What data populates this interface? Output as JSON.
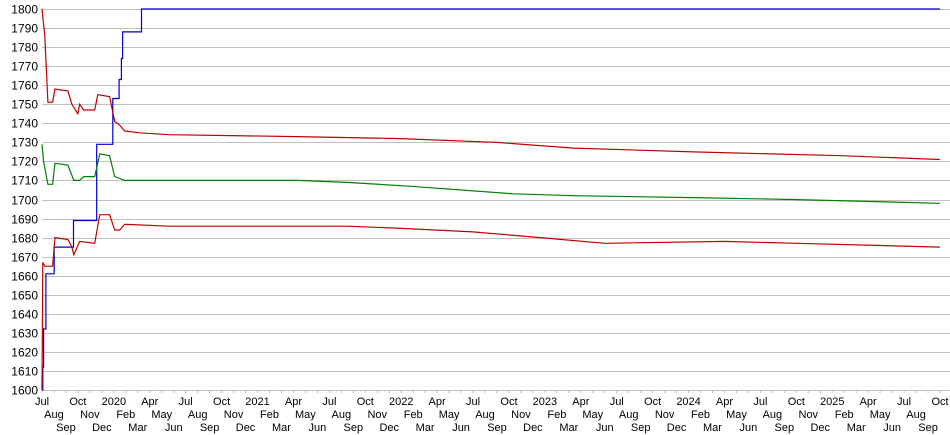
{
  "chart_data": {
    "type": "line",
    "title": "",
    "xlabel": "",
    "ylabel": "",
    "ylim": [
      1600,
      1800
    ],
    "yticks": [
      1600,
      1610,
      1620,
      1630,
      1640,
      1650,
      1660,
      1670,
      1680,
      1690,
      1700,
      1710,
      1720,
      1730,
      1740,
      1750,
      1760,
      1770,
      1780,
      1790,
      1800
    ],
    "xlim": [
      "2019-07-01",
      "2025-10-01"
    ],
    "xtick_labels": [
      "Jul",
      "Aug",
      "Sep",
      "Oct",
      "Nov",
      "Dec",
      "2020",
      "Feb",
      "Mar",
      "Apr",
      "May",
      "Jun",
      "Jul",
      "Aug",
      "Sep",
      "Oct",
      "Nov",
      "Dec",
      "2021",
      "Feb",
      "Mar",
      "Apr",
      "May",
      "Jun",
      "Jul",
      "Aug",
      "Sep",
      "Oct",
      "Nov",
      "Dec",
      "2022",
      "Feb",
      "Mar",
      "Apr",
      "May",
      "Jun",
      "Jul",
      "Aug",
      "Sep",
      "Oct",
      "Nov",
      "Dec",
      "2023",
      "Feb",
      "Mar",
      "Apr",
      "May",
      "Jun",
      "Jul",
      "Aug",
      "Sep",
      "Oct",
      "Nov",
      "Dec",
      "2024",
      "Feb",
      "Mar",
      "Apr",
      "May",
      "Jun",
      "Jul",
      "Aug",
      "Sep",
      "Oct",
      "Nov",
      "Dec",
      "2025",
      "Feb",
      "Mar",
      "Apr",
      "May",
      "Jun",
      "Jul",
      "Aug",
      "Sep",
      "Oct"
    ],
    "grid": true,
    "legend": "none",
    "series": [
      {
        "color": "#0000c8",
        "step": true,
        "points": [
          [
            "2019-07-01",
            1600
          ],
          [
            "2019-07-03",
            1612
          ],
          [
            "2019-07-05",
            1632
          ],
          [
            "2019-07-11",
            1661
          ],
          [
            "2019-08-01",
            1675
          ],
          [
            "2019-09-19",
            1689
          ],
          [
            "2019-11-17",
            1729
          ],
          [
            "2019-12-28",
            1753
          ],
          [
            "2020-01-13",
            1763
          ],
          [
            "2020-01-19",
            1774
          ],
          [
            "2020-01-22",
            1788
          ],
          [
            "2020-03-10",
            1800
          ],
          [
            "2025-10-01",
            1800
          ]
        ]
      },
      {
        "color": "#c00000",
        "step": false,
        "points": [
          [
            "2019-07-01",
            1800
          ],
          [
            "2019-07-08",
            1786
          ],
          [
            "2019-07-16",
            1751
          ],
          [
            "2019-07-28",
            1751
          ],
          [
            "2019-08-03",
            1758
          ],
          [
            "2019-09-05",
            1757
          ],
          [
            "2019-09-15",
            1750
          ],
          [
            "2019-09-30",
            1745
          ],
          [
            "2019-10-05",
            1750
          ],
          [
            "2019-10-15",
            1747
          ],
          [
            "2019-11-12",
            1747
          ],
          [
            "2019-11-20",
            1755
          ],
          [
            "2019-12-20",
            1754
          ],
          [
            "2020-01-02",
            1741
          ],
          [
            "2020-01-15",
            1739
          ],
          [
            "2020-01-27",
            1736
          ],
          [
            "2020-03-04",
            1735
          ],
          [
            "2020-05-19",
            1734
          ],
          [
            "2021-04-10",
            1733
          ],
          [
            "2021-12-19",
            1732
          ],
          [
            "2022-08-27",
            1730
          ],
          [
            "2023-03-15",
            1727
          ],
          [
            "2024-01-12",
            1725
          ],
          [
            "2025-01-24",
            1723
          ],
          [
            "2025-10-01",
            1721
          ]
        ]
      },
      {
        "color": "#008000",
        "step": false,
        "points": [
          [
            "2019-07-01",
            1729
          ],
          [
            "2019-07-05",
            1720
          ],
          [
            "2019-07-16",
            1708
          ],
          [
            "2019-07-28",
            1708
          ],
          [
            "2019-08-03",
            1719
          ],
          [
            "2019-09-05",
            1718
          ],
          [
            "2019-09-20",
            1710
          ],
          [
            "2019-10-05",
            1710
          ],
          [
            "2019-10-15",
            1712
          ],
          [
            "2019-11-12",
            1712
          ],
          [
            "2019-11-25",
            1724
          ],
          [
            "2019-12-20",
            1723
          ],
          [
            "2020-01-02",
            1712
          ],
          [
            "2020-01-15",
            1711
          ],
          [
            "2020-01-27",
            1710
          ],
          [
            "2020-05-19",
            1710
          ],
          [
            "2021-04-10",
            1710
          ],
          [
            "2021-08-15",
            1709
          ],
          [
            "2022-01-20",
            1707
          ],
          [
            "2022-10-10",
            1703
          ],
          [
            "2023-03-15",
            1702
          ],
          [
            "2024-01-12",
            1701
          ],
          [
            "2024-09-20",
            1700
          ],
          [
            "2025-10-01",
            1698
          ]
        ]
      },
      {
        "color": "#c00000",
        "step": false,
        "points": [
          [
            "2019-07-01",
            1600
          ],
          [
            "2019-07-03",
            1667
          ],
          [
            "2019-07-08",
            1665
          ],
          [
            "2019-07-28",
            1665
          ],
          [
            "2019-08-03",
            1680
          ],
          [
            "2019-09-05",
            1679
          ],
          [
            "2019-09-15",
            1675
          ],
          [
            "2019-09-20",
            1671
          ],
          [
            "2019-10-05",
            1678
          ],
          [
            "2019-11-12",
            1677
          ],
          [
            "2019-11-25",
            1692
          ],
          [
            "2019-12-20",
            1692
          ],
          [
            "2020-01-02",
            1684
          ],
          [
            "2020-01-15",
            1684
          ],
          [
            "2020-01-27",
            1687
          ],
          [
            "2020-05-19",
            1686
          ],
          [
            "2021-08-15",
            1686
          ],
          [
            "2021-12-19",
            1685
          ],
          [
            "2022-07-01",
            1683
          ],
          [
            "2022-12-20",
            1680
          ],
          [
            "2023-06-01",
            1677
          ],
          [
            "2024-04-01",
            1678
          ],
          [
            "2024-10-01",
            1677
          ],
          [
            "2025-10-01",
            1675
          ]
        ]
      }
    ]
  }
}
